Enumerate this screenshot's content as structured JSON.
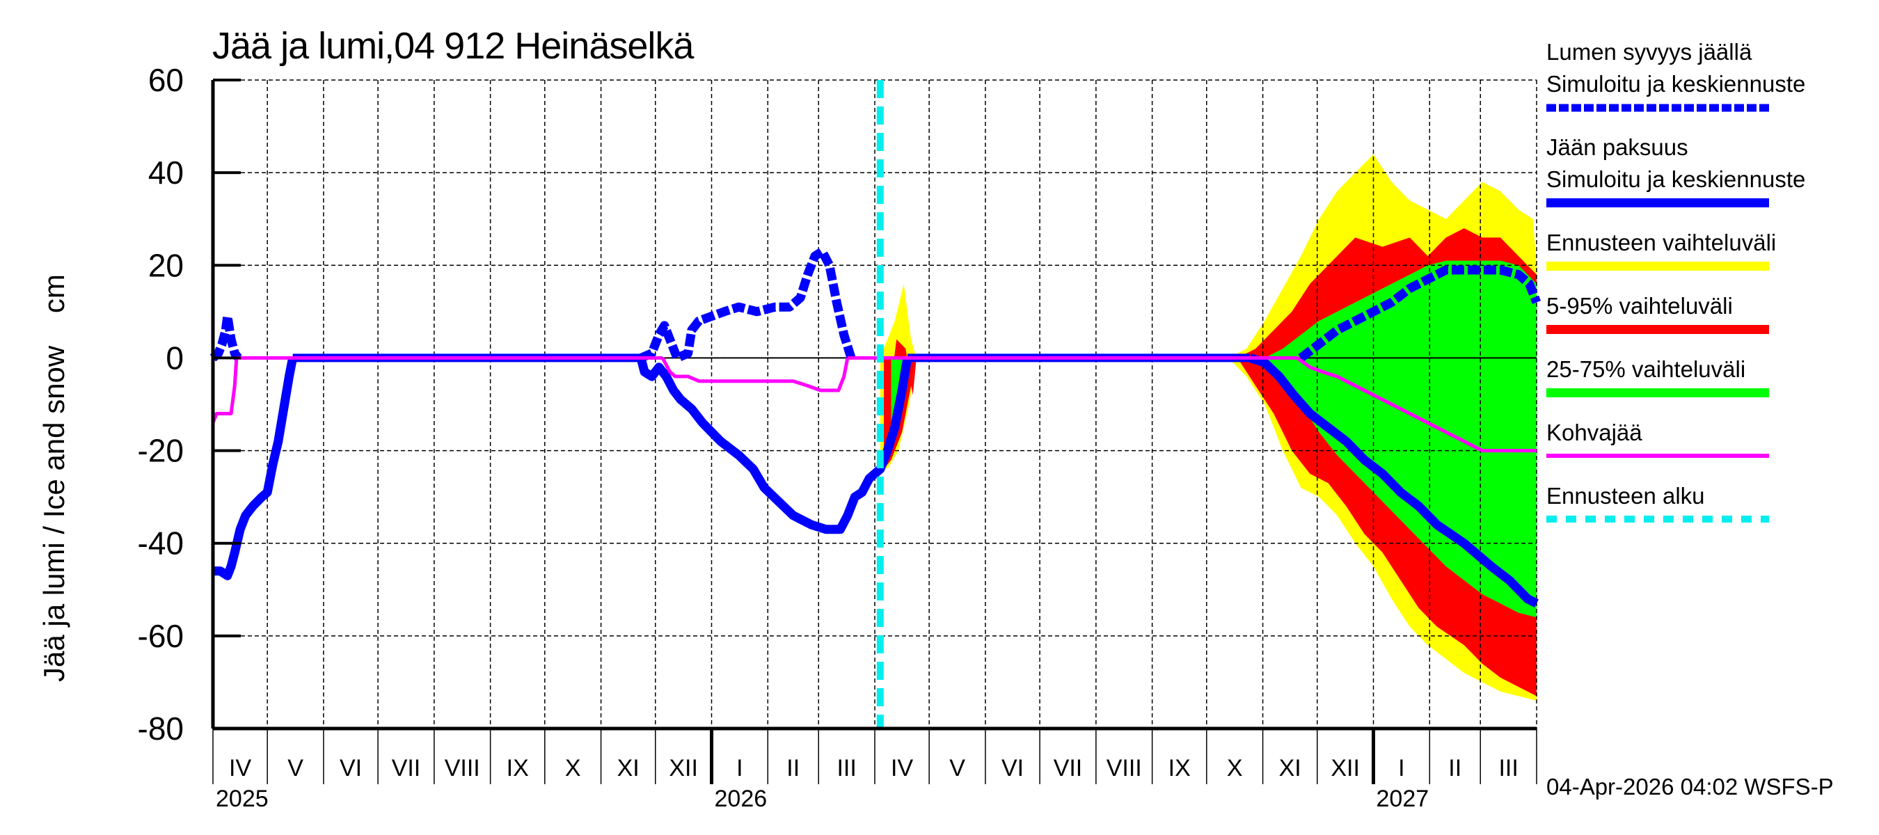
{
  "title": "Jää ja lumi,04 912 Heinäselkä",
  "y_axis_label": "Jää ja lumi / Ice and snow    cm",
  "timestamp": "04-Apr-2026 04:02 WSFS-P",
  "legend": [
    {
      "id": "snow",
      "label": "Lumen syvyys jäällä\nSimuloitu ja keskiennuste",
      "color": "#0000ff",
      "style": "dashed"
    },
    {
      "id": "ice",
      "label": "Jään paksuus\nSimuloitu ja keskiennuste",
      "color": "#0000ff",
      "style": "solid"
    },
    {
      "id": "range",
      "label": "Ennusteen vaihteluväli",
      "color": "#ffff00",
      "style": "solid"
    },
    {
      "id": "p5_95",
      "label": "5-95% vaihteluväli",
      "color": "#ff0000",
      "style": "solid"
    },
    {
      "id": "p25_75",
      "label": "25-75% vaihteluväli",
      "color": "#00ff00",
      "style": "solid"
    },
    {
      "id": "slush",
      "label": "Kohvajää",
      "color": "#ff00ff",
      "style": "thin"
    },
    {
      "id": "fc_start",
      "label": "Ennusteen alku",
      "color": "#00eeee",
      "style": "dashed"
    }
  ],
  "chart_data": {
    "type": "area",
    "title": "Jää ja lumi,04 912 Heinäselkä",
    "xlabel": "",
    "ylabel": "Jää ja lumi / Ice and snow cm",
    "ylim": [
      -80,
      60
    ],
    "yticks": [
      60,
      40,
      20,
      0,
      -20,
      -40,
      -60,
      -80
    ],
    "x_unit": "days since 2025-04-01",
    "xlim": [
      0,
      730
    ],
    "grid": true,
    "months": [
      {
        "label": "IV",
        "start": 0
      },
      {
        "label": "V",
        "start": 30
      },
      {
        "label": "VI",
        "start": 61
      },
      {
        "label": "VII",
        "start": 91
      },
      {
        "label": "VIII",
        "start": 122
      },
      {
        "label": "IX",
        "start": 153
      },
      {
        "label": "X",
        "start": 183
      },
      {
        "label": "XI",
        "start": 214
      },
      {
        "label": "XII",
        "start": 244
      },
      {
        "label": "I",
        "start": 275
      },
      {
        "label": "II",
        "start": 306
      },
      {
        "label": "III",
        "start": 334
      },
      {
        "label": "IV",
        "start": 365
      },
      {
        "label": "V",
        "start": 395
      },
      {
        "label": "VI",
        "start": 426
      },
      {
        "label": "VII",
        "start": 456
      },
      {
        "label": "VIII",
        "start": 487
      },
      {
        "label": "IX",
        "start": 518
      },
      {
        "label": "X",
        "start": 548
      },
      {
        "label": "XI",
        "start": 579
      },
      {
        "label": "XII",
        "start": 609
      },
      {
        "label": "I",
        "start": 640
      },
      {
        "label": "II",
        "start": 671
      },
      {
        "label": "III",
        "start": 699
      }
    ],
    "years": [
      {
        "label": "2025",
        "at": 0
      },
      {
        "label": "2026",
        "at": 275
      },
      {
        "label": "2027",
        "at": 640
      }
    ],
    "forecast_start": 368,
    "series": [
      {
        "name": "Jään paksuus (simuloitu)",
        "color": "#0000ff",
        "points": [
          [
            0,
            -46
          ],
          [
            4,
            -46
          ],
          [
            8,
            -47
          ],
          [
            10,
            -45
          ],
          [
            12,
            -42
          ],
          [
            15,
            -37
          ],
          [
            18,
            -34
          ],
          [
            22,
            -32
          ],
          [
            27,
            -30
          ],
          [
            30,
            -29
          ],
          [
            33,
            -23
          ],
          [
            36,
            -18
          ],
          [
            39,
            -11
          ],
          [
            42,
            -4
          ],
          [
            44,
            0
          ],
          [
            236,
            0
          ],
          [
            238,
            -3
          ],
          [
            242,
            -4
          ],
          [
            246,
            -2
          ],
          [
            250,
            -4
          ],
          [
            254,
            -7
          ],
          [
            258,
            -9
          ],
          [
            264,
            -11
          ],
          [
            270,
            -14
          ],
          [
            280,
            -18
          ],
          [
            290,
            -21
          ],
          [
            298,
            -24
          ],
          [
            304,
            -28
          ],
          [
            312,
            -31
          ],
          [
            320,
            -34
          ],
          [
            330,
            -36
          ],
          [
            338,
            -37
          ],
          [
            346,
            -37
          ],
          [
            350,
            -34
          ],
          [
            354,
            -30
          ],
          [
            358,
            -29
          ],
          [
            362,
            -26
          ],
          [
            368,
            -24
          ],
          [
            372,
            -20
          ],
          [
            376,
            -15
          ],
          [
            380,
            -7
          ],
          [
            383,
            0
          ],
          [
            572,
            0
          ],
          [
            580,
            -1
          ],
          [
            588,
            -4
          ],
          [
            596,
            -8
          ],
          [
            605,
            -12
          ],
          [
            615,
            -15
          ],
          [
            625,
            -18
          ],
          [
            635,
            -22
          ],
          [
            645,
            -25
          ],
          [
            655,
            -29
          ],
          [
            665,
            -32
          ],
          [
            675,
            -36
          ],
          [
            690,
            -40
          ],
          [
            705,
            -45
          ],
          [
            715,
            -48
          ],
          [
            725,
            -52
          ],
          [
            730,
            -53
          ]
        ]
      },
      {
        "name": "Lumen syvyys jäällä (simuloitu)",
        "color": "#0000ff",
        "dashed": true,
        "points": [
          [
            0,
            0
          ],
          [
            3,
            1
          ],
          [
            5,
            3
          ],
          [
            7,
            6
          ],
          [
            8,
            9
          ],
          [
            10,
            4
          ],
          [
            12,
            1
          ],
          [
            14,
            0
          ],
          [
            236,
            0
          ],
          [
            242,
            1
          ],
          [
            246,
            5
          ],
          [
            249,
            7
          ],
          [
            252,
            4
          ],
          [
            256,
            0
          ],
          [
            262,
            1
          ],
          [
            264,
            6
          ],
          [
            268,
            8
          ],
          [
            275,
            9
          ],
          [
            282,
            10
          ],
          [
            290,
            11
          ],
          [
            300,
            10
          ],
          [
            310,
            11
          ],
          [
            318,
            11
          ],
          [
            324,
            13
          ],
          [
            328,
            18
          ],
          [
            332,
            22
          ],
          [
            336,
            23
          ],
          [
            340,
            20
          ],
          [
            344,
            12
          ],
          [
            348,
            5
          ],
          [
            352,
            0
          ],
          [
            600,
            0
          ],
          [
            610,
            3
          ],
          [
            620,
            6
          ],
          [
            630,
            8
          ],
          [
            640,
            10
          ],
          [
            650,
            12
          ],
          [
            660,
            15
          ],
          [
            670,
            17
          ],
          [
            680,
            19
          ],
          [
            690,
            19
          ],
          [
            700,
            19
          ],
          [
            710,
            19
          ],
          [
            720,
            18
          ],
          [
            726,
            16
          ],
          [
            730,
            12
          ]
        ]
      },
      {
        "name": "Kohvajää",
        "color": "#ff00ff",
        "points": [
          [
            0,
            -14
          ],
          [
            2,
            -12
          ],
          [
            6,
            -12
          ],
          [
            10,
            -12
          ],
          [
            12,
            -6
          ],
          [
            13,
            0
          ],
          [
            248,
            0
          ],
          [
            252,
            -3
          ],
          [
            255,
            -4
          ],
          [
            262,
            -4
          ],
          [
            268,
            -5
          ],
          [
            290,
            -5
          ],
          [
            320,
            -5
          ],
          [
            328,
            -6
          ],
          [
            335,
            -7
          ],
          [
            345,
            -7
          ],
          [
            348,
            -4
          ],
          [
            350,
            0
          ],
          [
            598,
            0
          ],
          [
            605,
            -2
          ],
          [
            612,
            -3
          ],
          [
            620,
            -4
          ],
          [
            630,
            -6
          ],
          [
            640,
            -8
          ],
          [
            650,
            -10
          ],
          [
            660,
            -12
          ],
          [
            670,
            -14
          ],
          [
            680,
            -16
          ],
          [
            690,
            -18
          ],
          [
            700,
            -20
          ],
          [
            710,
            -20
          ],
          [
            730,
            -20
          ]
        ]
      }
    ],
    "bands": [
      {
        "name": "Ennusteen vaihteluväli",
        "color": "#ffff00",
        "upper": [
          [
            368,
            0
          ],
          [
            376,
            8
          ],
          [
            381,
            16
          ],
          [
            385,
            4
          ],
          [
            388,
            0
          ],
          [
            560,
            0
          ],
          [
            570,
            2
          ],
          [
            580,
            8
          ],
          [
            590,
            15
          ],
          [
            600,
            22
          ],
          [
            610,
            30
          ],
          [
            620,
            36
          ],
          [
            630,
            40
          ],
          [
            640,
            44
          ],
          [
            650,
            38
          ],
          [
            660,
            34
          ],
          [
            670,
            32
          ],
          [
            680,
            30
          ],
          [
            690,
            34
          ],
          [
            700,
            38
          ],
          [
            710,
            36
          ],
          [
            720,
            32
          ],
          [
            728,
            30
          ],
          [
            730,
            20
          ]
        ],
        "lower": [
          [
            368,
            -22
          ],
          [
            372,
            -24
          ],
          [
            378,
            -20
          ],
          [
            384,
            -10
          ],
          [
            388,
            0
          ],
          [
            560,
            0
          ],
          [
            570,
            -4
          ],
          [
            580,
            -10
          ],
          [
            590,
            -20
          ],
          [
            600,
            -28
          ],
          [
            610,
            -30
          ],
          [
            620,
            -34
          ],
          [
            630,
            -40
          ],
          [
            640,
            -45
          ],
          [
            650,
            -52
          ],
          [
            660,
            -58
          ],
          [
            670,
            -62
          ],
          [
            680,
            -65
          ],
          [
            690,
            -68
          ],
          [
            700,
            -70
          ],
          [
            710,
            -72
          ],
          [
            720,
            -73
          ],
          [
            730,
            -74
          ]
        ]
      },
      {
        "name": "5-95% vaihteluväli",
        "color": "#ff0000",
        "upper": [
          [
            370,
            -18
          ],
          [
            377,
            4
          ],
          [
            382,
            2
          ],
          [
            386,
            -8
          ],
          [
            388,
            0
          ],
          [
            565,
            0
          ],
          [
            575,
            2
          ],
          [
            585,
            6
          ],
          [
            595,
            10
          ],
          [
            605,
            16
          ],
          [
            615,
            20
          ],
          [
            630,
            26
          ],
          [
            645,
            24
          ],
          [
            660,
            26
          ],
          [
            670,
            22
          ],
          [
            680,
            26
          ],
          [
            690,
            28
          ],
          [
            700,
            26
          ],
          [
            710,
            26
          ],
          [
            720,
            22
          ],
          [
            730,
            18
          ]
        ],
        "lower": [
          [
            370,
            -24
          ],
          [
            374,
            -22
          ],
          [
            380,
            -16
          ],
          [
            385,
            -6
          ],
          [
            388,
            0
          ],
          [
            565,
            0
          ],
          [
            575,
            -6
          ],
          [
            585,
            -12
          ],
          [
            595,
            -20
          ],
          [
            605,
            -25
          ],
          [
            615,
            -27
          ],
          [
            625,
            -32
          ],
          [
            635,
            -38
          ],
          [
            645,
            -42
          ],
          [
            655,
            -48
          ],
          [
            665,
            -54
          ],
          [
            675,
            -58
          ],
          [
            690,
            -62
          ],
          [
            700,
            -66
          ],
          [
            710,
            -69
          ],
          [
            720,
            -71
          ],
          [
            730,
            -73
          ]
        ]
      },
      {
        "name": "25-75% vaihteluväli",
        "color": "#00ff00",
        "upper": [
          [
            374,
            -14
          ],
          [
            378,
            -6
          ],
          [
            381,
            0
          ],
          [
            580,
            0
          ],
          [
            590,
            2
          ],
          [
            600,
            5
          ],
          [
            610,
            8
          ],
          [
            620,
            10
          ],
          [
            630,
            12
          ],
          [
            640,
            14
          ],
          [
            650,
            16
          ],
          [
            660,
            18
          ],
          [
            670,
            20
          ],
          [
            680,
            21
          ],
          [
            690,
            21
          ],
          [
            700,
            21
          ],
          [
            710,
            21
          ],
          [
            720,
            20
          ],
          [
            730,
            16
          ]
        ],
        "lower": [
          [
            374,
            -20
          ],
          [
            378,
            -14
          ],
          [
            382,
            -4
          ],
          [
            384,
            0
          ],
          [
            580,
            0
          ],
          [
            590,
            -5
          ],
          [
            600,
            -10
          ],
          [
            610,
            -16
          ],
          [
            620,
            -21
          ],
          [
            630,
            -25
          ],
          [
            640,
            -29
          ],
          [
            650,
            -33
          ],
          [
            660,
            -37
          ],
          [
            670,
            -41
          ],
          [
            680,
            -45
          ],
          [
            690,
            -48
          ],
          [
            700,
            -51
          ],
          [
            710,
            -53
          ],
          [
            720,
            -55
          ],
          [
            730,
            -56
          ]
        ]
      }
    ]
  }
}
